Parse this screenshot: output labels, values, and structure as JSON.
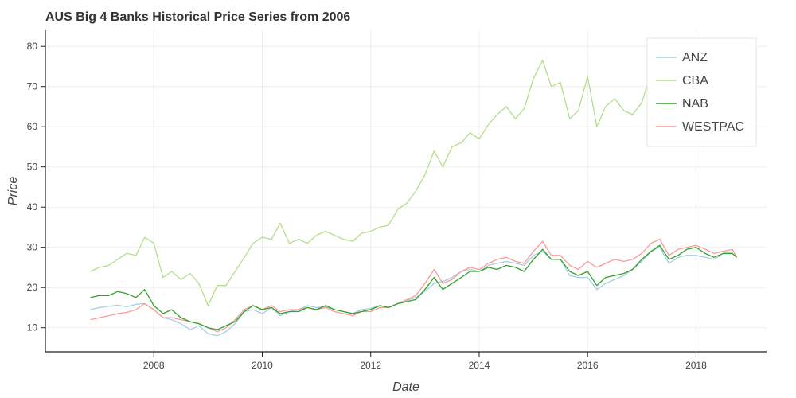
{
  "chart_data": {
    "type": "line",
    "title": "AUS Big 4 Banks Historical Price Series from 2006",
    "xlabel": "Date",
    "ylabel": "Price",
    "xlim": [
      2006.0,
      2019.3
    ],
    "ylim": [
      4,
      84
    ],
    "x_ticks": [
      2008,
      2010,
      2012,
      2014,
      2016,
      2018
    ],
    "x_tick_labels": [
      "2008",
      "2010",
      "2012",
      "2014",
      "2016",
      "2018"
    ],
    "y_ticks": [
      10,
      20,
      30,
      40,
      50,
      60,
      70,
      80
    ],
    "y_tick_labels": [
      "10",
      "20",
      "30",
      "40",
      "50",
      "60",
      "70",
      "80"
    ],
    "grid": true,
    "legend_position": "top-right",
    "x": [
      2006.83,
      2007.0,
      2007.17,
      2007.33,
      2007.5,
      2007.67,
      2007.83,
      2008.0,
      2008.17,
      2008.33,
      2008.5,
      2008.67,
      2008.83,
      2009.0,
      2009.17,
      2009.33,
      2009.5,
      2009.67,
      2009.83,
      2010.0,
      2010.17,
      2010.33,
      2010.5,
      2010.67,
      2010.83,
      2011.0,
      2011.17,
      2011.33,
      2011.5,
      2011.67,
      2011.83,
      2012.0,
      2012.17,
      2012.33,
      2012.5,
      2012.67,
      2012.83,
      2013.0,
      2013.17,
      2013.33,
      2013.5,
      2013.67,
      2013.83,
      2014.0,
      2014.17,
      2014.33,
      2014.5,
      2014.67,
      2014.83,
      2015.0,
      2015.17,
      2015.33,
      2015.5,
      2015.67,
      2015.83,
      2016.0,
      2016.17,
      2016.33,
      2016.5,
      2016.67,
      2016.83,
      2017.0,
      2017.17,
      2017.33,
      2017.5,
      2017.67,
      2017.83,
      2018.0,
      2018.17,
      2018.33,
      2018.5,
      2018.67,
      2018.75
    ],
    "series": [
      {
        "name": "ANZ",
        "color": "#a6cee3",
        "values": [
          14.5,
          15.0,
          15.3,
          15.6,
          15.2,
          15.8,
          16.0,
          14.5,
          12.5,
          12.0,
          11.0,
          9.5,
          10.5,
          8.5,
          8.0,
          9.0,
          11.0,
          14.0,
          14.5,
          13.5,
          15.0,
          13.0,
          14.0,
          14.5,
          15.5,
          15.0,
          15.2,
          14.5,
          14.0,
          13.5,
          14.5,
          14.8,
          15.5,
          15.0,
          16.0,
          16.8,
          17.5,
          19.0,
          21.0,
          21.5,
          22.5,
          24.0,
          24.5,
          24.0,
          25.5,
          26.0,
          26.5,
          26.0,
          25.5,
          28.0,
          29.0,
          27.0,
          27.0,
          23.0,
          22.5,
          22.5,
          19.5,
          21.0,
          22.0,
          23.0,
          24.5,
          26.5,
          29.0,
          30.0,
          26.0,
          27.5,
          28.0,
          28.0,
          27.5,
          27.0,
          28.5,
          28.5,
          27.5
        ]
      },
      {
        "name": "CBA",
        "color": "#b2df8a",
        "values": [
          24.0,
          25.0,
          25.5,
          27.0,
          28.5,
          28.0,
          32.5,
          31.0,
          22.5,
          24.0,
          22.0,
          23.5,
          21.0,
          15.5,
          20.5,
          20.5,
          24.0,
          27.5,
          31.0,
          32.5,
          32.0,
          36.0,
          31.0,
          32.0,
          31.0,
          33.0,
          34.0,
          33.0,
          32.0,
          31.5,
          33.5,
          34.0,
          35.0,
          35.5,
          39.5,
          41.0,
          44.0,
          48.0,
          54.0,
          50.0,
          55.0,
          56.0,
          58.5,
          57.0,
          60.5,
          63.0,
          65.0,
          62.0,
          64.5,
          72.0,
          76.5,
          70.0,
          71.0,
          62.0,
          64.0,
          72.5,
          60.0,
          65.0,
          67.0,
          64.0,
          63.0,
          66.0,
          73.5,
          74.0,
          80.0,
          80.0,
          80.0,
          80.0,
          80.0,
          80.0,
          80.0,
          80.0,
          80.0
        ]
      },
      {
        "name": "NAB",
        "color": "#33a02c",
        "values": [
          17.5,
          18.0,
          18.0,
          19.0,
          18.5,
          17.5,
          19.5,
          15.5,
          13.5,
          14.5,
          12.5,
          11.5,
          11.0,
          10.0,
          9.5,
          10.5,
          11.5,
          14.0,
          15.5,
          14.5,
          15.0,
          13.5,
          14.0,
          14.0,
          15.0,
          14.5,
          15.5,
          14.5,
          14.0,
          13.5,
          14.0,
          14.5,
          15.5,
          15.0,
          16.0,
          16.5,
          17.0,
          19.5,
          22.5,
          19.5,
          21.0,
          22.5,
          24.0,
          24.0,
          25.0,
          24.5,
          25.5,
          25.0,
          24.0,
          27.0,
          29.5,
          27.0,
          27.0,
          24.0,
          23.0,
          24.0,
          20.5,
          22.5,
          23.0,
          23.5,
          24.5,
          27.0,
          29.0,
          30.5,
          27.0,
          28.0,
          29.5,
          30.0,
          28.5,
          27.5,
          28.5,
          28.5,
          27.5
        ]
      },
      {
        "name": "WESTPAC",
        "color": "#fb9a99",
        "values": [
          12.0,
          12.5,
          13.0,
          13.5,
          13.8,
          14.5,
          16.0,
          14.5,
          12.5,
          12.5,
          12.0,
          11.5,
          11.0,
          10.0,
          9.0,
          10.0,
          12.0,
          14.5,
          15.5,
          14.5,
          15.5,
          14.0,
          14.5,
          14.5,
          15.0,
          14.5,
          15.0,
          14.0,
          13.5,
          13.0,
          14.0,
          14.0,
          15.0,
          15.0,
          16.0,
          17.0,
          18.0,
          21.0,
          24.5,
          21.0,
          22.0,
          24.0,
          25.0,
          24.5,
          26.0,
          27.0,
          27.5,
          26.5,
          26.0,
          29.0,
          31.5,
          28.0,
          28.0,
          25.5,
          24.5,
          26.5,
          25.0,
          26.0,
          27.0,
          26.5,
          27.0,
          28.5,
          31.0,
          32.0,
          28.0,
          29.5,
          30.0,
          30.5,
          29.5,
          28.5,
          29.0,
          29.5,
          27.5
        ]
      }
    ]
  }
}
